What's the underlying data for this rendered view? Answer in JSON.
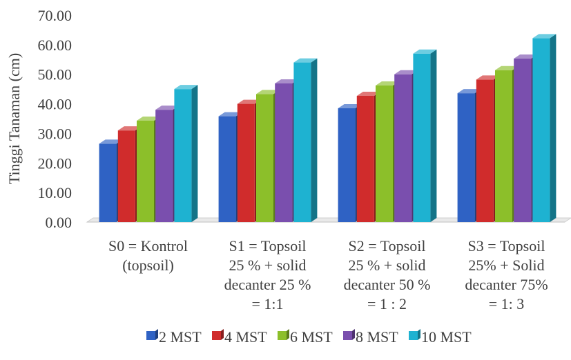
{
  "chart_data": {
    "type": "bar",
    "title": "",
    "xlabel": "",
    "ylabel": "Tinggi Tanaman (cm)",
    "ylim": [
      0,
      70
    ],
    "yticks": [
      "0.00",
      "10.00",
      "20.00",
      "30.00",
      "40.00",
      "50.00",
      "60.00",
      "70.00"
    ],
    "grid": false,
    "legend_position": "bottom",
    "categories": [
      [
        "S0 = Kontrol",
        "(topsoil)"
      ],
      [
        "S1  =  Topsoil",
        "25  %  +  solid",
        "decanter 25 %",
        "= 1:1"
      ],
      [
        "S2  =  Topsoil",
        "25  %  +  solid",
        "decanter 50 %",
        "= 1 : 2"
      ],
      [
        "S3 = Topsoil",
        "25% + Solid",
        "decanter 75%",
        "= 1: 3"
      ]
    ],
    "series": [
      {
        "name": "2 MST",
        "color": "#2f62c4",
        "values": [
          26.5,
          35.8,
          38.5,
          43.6
        ]
      },
      {
        "name": "4 MST",
        "color": "#d02c2c",
        "values": [
          31.0,
          40.0,
          42.7,
          48.2
        ]
      },
      {
        "name": "6 MST",
        "color": "#8cbf2a",
        "values": [
          34.3,
          43.3,
          46.2,
          51.4
        ]
      },
      {
        "name": "8 MST",
        "color": "#7a4fae",
        "values": [
          38.0,
          46.9,
          50.0,
          55.3
        ]
      },
      {
        "name": "10 MST",
        "color": "#1eb2d1",
        "values": [
          45.0,
          54.0,
          57.0,
          62.2
        ]
      }
    ]
  }
}
